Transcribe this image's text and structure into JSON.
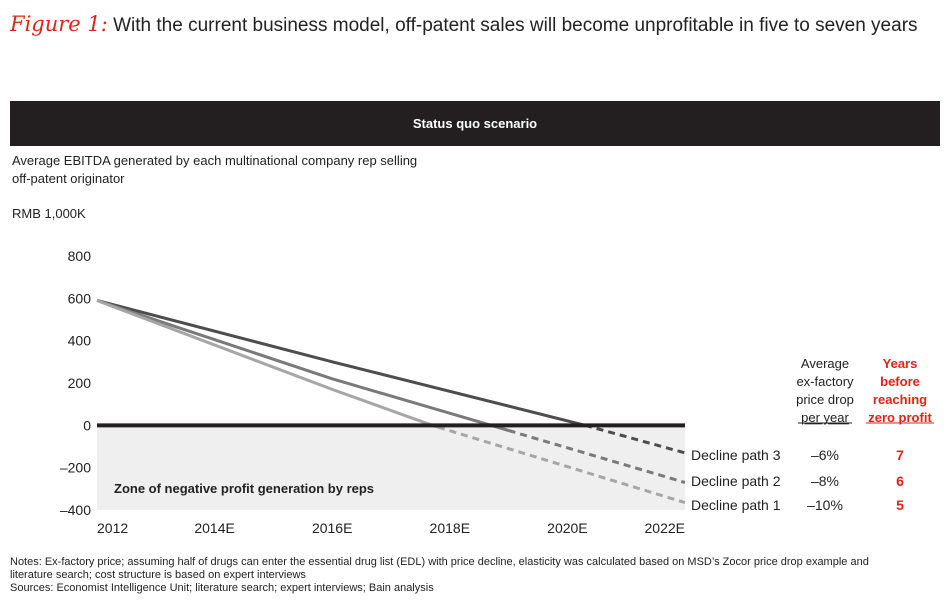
{
  "figure": {
    "prefix": "Figure 1:",
    "title": "With the current business model, off-patent sales will become unprofitable in five to seven years"
  },
  "banner": "Status quo scenario",
  "subtitle": "Average EBITDA generated by each multinational company rep selling off-patent originator",
  "unit": "RMB 1,000K",
  "chart_data": {
    "type": "line",
    "x_labels": [
      "2012",
      "2014E",
      "2016E",
      "2018E",
      "2020E",
      "2022E"
    ],
    "x_range": [
      2012,
      2022
    ],
    "ylim": [
      -400,
      800
    ],
    "yticks": [
      800,
      600,
      400,
      200,
      0,
      -200,
      -400
    ],
    "ytick_labels": [
      "800",
      "600",
      "400",
      "200",
      "0",
      "–200",
      "–400"
    ],
    "zone_label": "Zone of negative profit generation by reps",
    "series": [
      {
        "name": "Decline path 3",
        "price_drop": "–6%",
        "years": "7",
        "color": "#4d4d4d",
        "solid_until": 2020.3,
        "points": [
          [
            2012,
            590
          ],
          [
            2016,
            300
          ],
          [
            2020.3,
            0
          ],
          [
            2022,
            -130
          ]
        ]
      },
      {
        "name": "Decline path 2",
        "price_drop": "–8%",
        "years": "6",
        "color": "#7a7a7a",
        "solid_until": 2019.0,
        "points": [
          [
            2012,
            590
          ],
          [
            2016,
            220
          ],
          [
            2018.7,
            0
          ],
          [
            2022,
            -270
          ]
        ]
      },
      {
        "name": "Decline path 1",
        "price_drop": "–10%",
        "years": "5",
        "color": "#a6a6a6",
        "solid_until": 2017.8,
        "points": [
          [
            2012,
            590
          ],
          [
            2016,
            170
          ],
          [
            2017.7,
            0
          ],
          [
            2022,
            -365
          ]
        ]
      }
    ],
    "table_headers": {
      "price_drop": [
        "Average",
        "ex-factory",
        "price drop",
        "per year"
      ],
      "years": [
        "Years",
        "before",
        "reaching",
        "zero profit"
      ]
    }
  },
  "notes": {
    "line1": "Notes: Ex-factory price; assuming half of drugs can enter the essential drug list (EDL) with price decline, elasticity was calculated based on MSD’s Zocor price drop example and",
    "line2": "literature search; cost structure is based on expert interviews",
    "line3": "Sources: Economist Intelligence Unit; literature search; expert interviews; Bain analysis"
  },
  "colors": {
    "accent": "#e2231a",
    "banner": "#231f20",
    "zero_line": "#231f20",
    "zone": "#efefef"
  }
}
